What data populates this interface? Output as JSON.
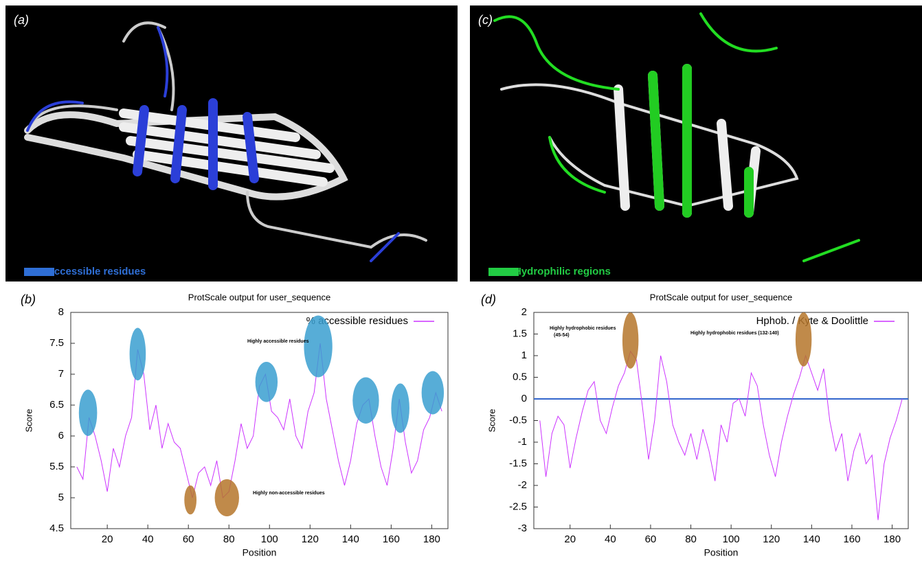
{
  "images": [
    {
      "label": "(a)",
      "legend": "Accessible residues",
      "color": "#2f6fd6"
    },
    {
      "label": "(c)",
      "legend": "Hydrophilic regions",
      "color": "#22cc44"
    }
  ],
  "chart_data": [
    {
      "type": "line",
      "panel_label": "(b)",
      "title": "ProtScale output for user_sequence",
      "x_label": "Position",
      "y_label": "Score",
      "legend_position": "upper right",
      "x": [
        5,
        8,
        11,
        14,
        17,
        20,
        23,
        26,
        29,
        32,
        35,
        38,
        41,
        44,
        47,
        50,
        53,
        56,
        59,
        62,
        65,
        68,
        71,
        74,
        77,
        80,
        83,
        86,
        89,
        92,
        95,
        98,
        101,
        104,
        107,
        110,
        113,
        116,
        119,
        122,
        125,
        128,
        131,
        134,
        137,
        140,
        143,
        146,
        149,
        152,
        155,
        158,
        161,
        164,
        167,
        170,
        173,
        176,
        179,
        182,
        185
      ],
      "series": [
        {
          "name": "% accessible residues",
          "color": "#cc33ff",
          "values": [
            5.5,
            5.3,
            6.3,
            6.0,
            5.6,
            5.1,
            5.8,
            5.5,
            6.0,
            6.3,
            7.4,
            7.0,
            6.1,
            6.5,
            5.8,
            6.2,
            5.9,
            5.8,
            5.4,
            5.0,
            5.4,
            5.5,
            5.2,
            5.6,
            5.0,
            5.1,
            5.6,
            6.2,
            5.8,
            6.0,
            6.8,
            7.0,
            6.4,
            6.3,
            6.1,
            6.6,
            6.0,
            5.8,
            6.4,
            6.7,
            7.5,
            6.6,
            6.1,
            5.6,
            5.2,
            5.6,
            6.2,
            6.5,
            6.6,
            6.0,
            5.5,
            5.2,
            5.8,
            6.6,
            5.9,
            5.4,
            5.6,
            6.1,
            6.3,
            6.7,
            6.4
          ]
        }
      ],
      "xlim": [
        2,
        188
      ],
      "xticks": [
        20,
        40,
        60,
        80,
        100,
        120,
        140,
        160,
        180
      ],
      "ylim": [
        4.5,
        8
      ],
      "yticks": [
        4.5,
        5,
        5.5,
        6,
        6.5,
        7,
        7.5,
        8
      ],
      "highlights": [
        {
          "x": [
            6,
            15
          ],
          "y": [
            6.0,
            6.75
          ],
          "color": "#3a9fd0"
        },
        {
          "x": [
            31,
            39
          ],
          "y": [
            6.9,
            7.75
          ],
          "color": "#3a9fd0"
        },
        {
          "x": [
            93,
            104
          ],
          "y": [
            6.55,
            7.2
          ],
          "color": "#3a9fd0"
        },
        {
          "x": [
            117,
            131
          ],
          "y": [
            6.95,
            7.95
          ],
          "color": "#3a9fd0"
        },
        {
          "x": [
            141,
            154
          ],
          "y": [
            6.2,
            6.95
          ],
          "color": "#3a9fd0"
        },
        {
          "x": [
            160,
            169
          ],
          "y": [
            6.05,
            6.85
          ],
          "color": "#3a9fd0"
        },
        {
          "x": [
            175,
            186
          ],
          "y": [
            6.35,
            7.05
          ],
          "color": "#3a9fd0"
        },
        {
          "x": [
            58,
            64
          ],
          "y": [
            4.73,
            5.2
          ],
          "color": "#b5762a"
        },
        {
          "x": [
            73,
            85
          ],
          "y": [
            4.7,
            5.3
          ],
          "color": "#b5762a"
        }
      ],
      "annotations": [
        "Highly  accessible residues",
        "Highly  non-accessible residues"
      ]
    },
    {
      "type": "line",
      "panel_label": "(d)",
      "title": "ProtScale output for user_sequence",
      "x_label": "Position",
      "y_label": "Score",
      "legend_position": "upper right",
      "x": [
        5,
        8,
        11,
        14,
        17,
        20,
        23,
        26,
        29,
        32,
        35,
        38,
        41,
        44,
        47,
        50,
        53,
        56,
        59,
        62,
        65,
        68,
        71,
        74,
        77,
        80,
        83,
        86,
        89,
        92,
        95,
        98,
        101,
        104,
        107,
        110,
        113,
        116,
        119,
        122,
        125,
        128,
        131,
        134,
        137,
        140,
        143,
        146,
        149,
        152,
        155,
        158,
        161,
        164,
        167,
        170,
        173,
        176,
        179,
        182,
        185
      ],
      "series": [
        {
          "name": "Hphob. / Kyte & Doolittle",
          "color": "#cc33ff",
          "values": [
            -0.5,
            -1.8,
            -0.8,
            -0.4,
            -0.6,
            -1.6,
            -0.9,
            -0.3,
            0.2,
            0.4,
            -0.5,
            -0.8,
            -0.2,
            0.3,
            0.6,
            1.1,
            0.9,
            -0.2,
            -1.4,
            -0.5,
            1.0,
            0.4,
            -0.6,
            -1.0,
            -1.3,
            -0.8,
            -1.4,
            -0.7,
            -1.2,
            -1.9,
            -0.6,
            -1.0,
            -0.1,
            0.0,
            -0.4,
            0.6,
            0.3,
            -0.6,
            -1.3,
            -1.8,
            -1.0,
            -0.4,
            0.1,
            0.5,
            1.0,
            0.6,
            0.2,
            0.7,
            -0.5,
            -1.2,
            -0.8,
            -1.9,
            -1.2,
            -0.8,
            -1.5,
            -1.3,
            -2.8,
            -1.5,
            -0.9,
            -0.5,
            0.0
          ]
        }
      ],
      "xlim": [
        2,
        188
      ],
      "xticks": [
        20,
        40,
        60,
        80,
        100,
        120,
        140,
        160,
        180
      ],
      "ylim": [
        -3,
        2
      ],
      "yticks": [
        -3,
        -2.5,
        -2,
        -1.5,
        -1,
        -0.5,
        0,
        0.5,
        1,
        1.5,
        2
      ],
      "reference_line": {
        "value": 0,
        "color": "#3366cc"
      },
      "highlights": [
        {
          "x": [
            46,
            54
          ],
          "y": [
            0.7,
            2.0
          ],
          "color": "#b5762a"
        },
        {
          "x": [
            132,
            140
          ],
          "y": [
            0.75,
            2.0
          ],
          "color": "#b5762a"
        }
      ],
      "annotations": [
        "Highly hydrophobic residues",
        "(45-54)",
        "Highly hydrophobic residues  (132-140)"
      ]
    }
  ]
}
